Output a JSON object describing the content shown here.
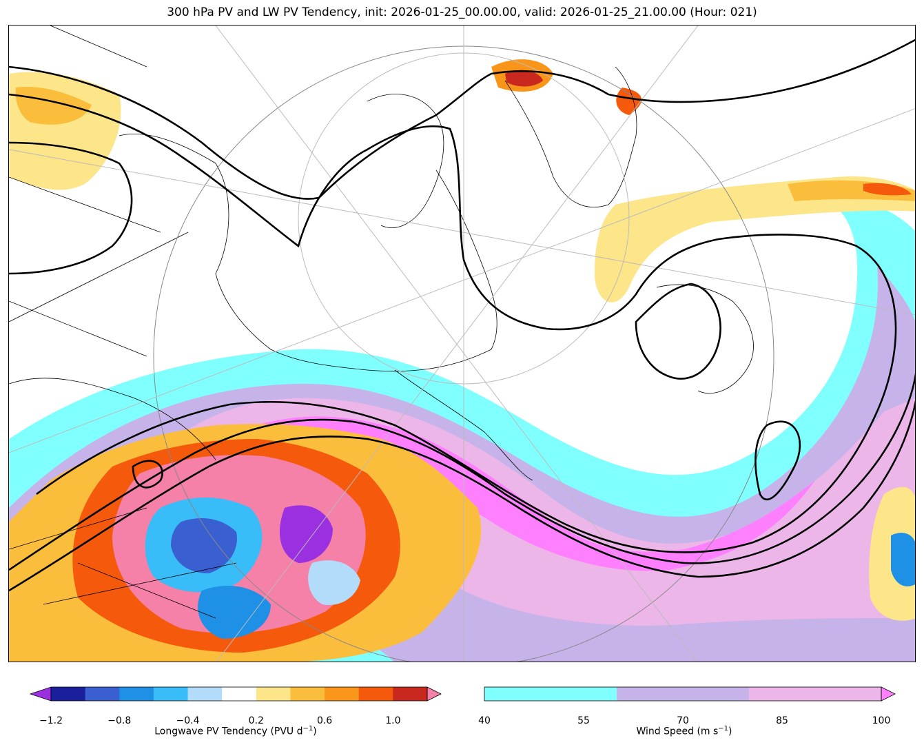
{
  "title": "300 hPa PV and LW PV Tendency, init: 2026-01-25_00.00.00, valid: 2026-01-25_21.00.00 (Hour: 021)",
  "pv_colorbar": {
    "label_prefix": "Longwave PV Tendency (PVU d",
    "label_exp": "−1",
    "label_suffix": ")",
    "ticks": [
      "−1.2",
      "−0.8",
      "−0.4",
      "0.2",
      "0.6",
      "1.0"
    ],
    "levels": [
      -1.2,
      -1.0,
      -0.8,
      -0.6,
      -0.4,
      -0.2,
      0.2,
      0.4,
      0.6,
      0.8,
      1.0,
      1.2
    ],
    "colors": [
      "#9b30e0",
      "#1a1f9c",
      "#3a5fd0",
      "#1e90e6",
      "#38bdf8",
      "#b3dcfb",
      "#ffffff",
      "#fde58a",
      "#fbbd3c",
      "#f99519",
      "#f55a0c",
      "#c8281e",
      "#f580a8"
    ],
    "extend": "both"
  },
  "wind_colorbar": {
    "label_prefix": "Wind Speed (m s",
    "label_exp": "−1",
    "label_suffix": ")",
    "ticks": [
      "40",
      "55",
      "70",
      "85",
      "100"
    ],
    "colors": [
      "#80ffff",
      "#c6b3ea",
      "#ecb6e8",
      "#ff80ff"
    ],
    "extend": "max"
  }
}
